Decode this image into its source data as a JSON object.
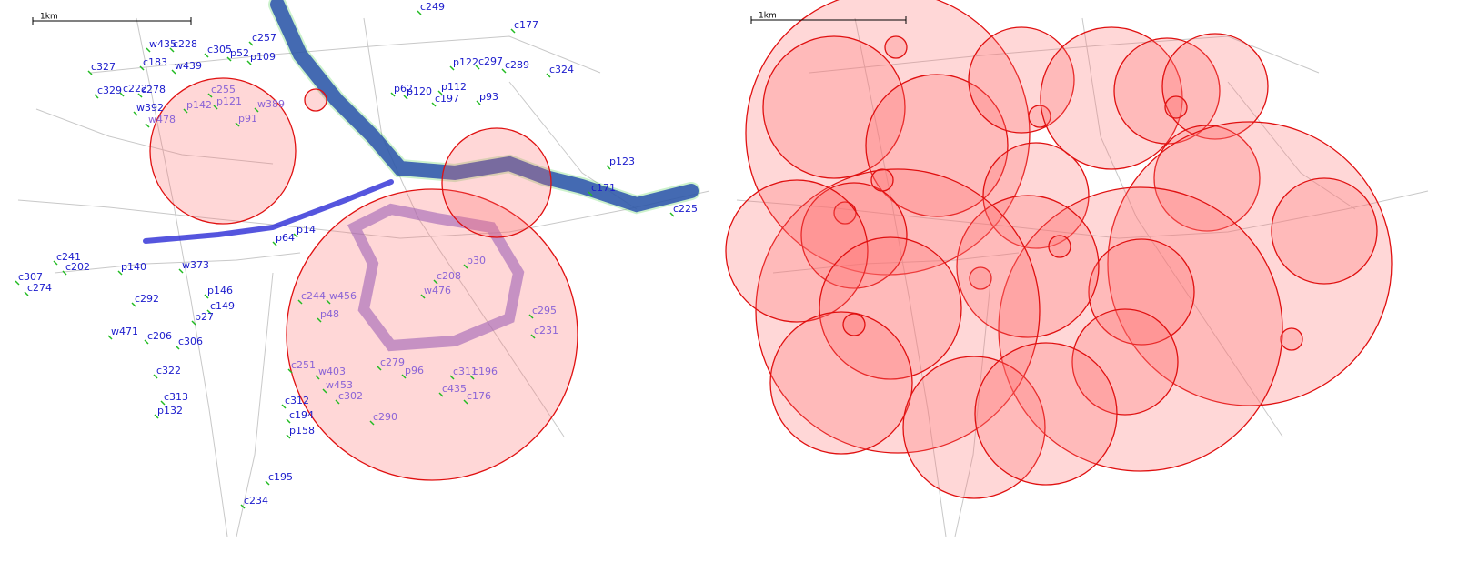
{
  "left_map": {
    "scale_label": "1km",
    "labels": [
      "c249",
      "c177",
      "c257",
      "w435",
      "c228",
      "c305",
      "p52",
      "p109",
      "c327",
      "c183",
      "w439",
      "p122",
      "c297",
      "c289",
      "c324",
      "c329",
      "c222",
      "c278",
      "p62",
      "p120",
      "p112",
      "c197",
      "p93",
      "w392",
      "c255",
      "p121",
      "p142",
      "w389",
      "w478",
      "p91",
      "p123",
      "c171",
      "c225",
      "c241",
      "c202",
      "p140",
      "w373",
      "c307",
      "c274",
      "c292",
      "p146",
      "c149",
      "p27",
      "w471",
      "c206",
      "c306",
      "c322",
      "c313",
      "p132",
      "c312",
      "c194",
      "p158",
      "c195",
      "c234",
      "c231",
      "c295",
      "c176",
      "c290",
      "c302",
      "p96",
      "w453",
      "c251",
      "w403",
      "c279",
      "p48",
      "c244",
      "w456",
      "p14",
      "p64",
      "w476",
      "c208",
      "p30",
      "c311",
      "c196",
      "c435"
    ]
  },
  "right_map": {
    "scale_label": "1km"
  }
}
